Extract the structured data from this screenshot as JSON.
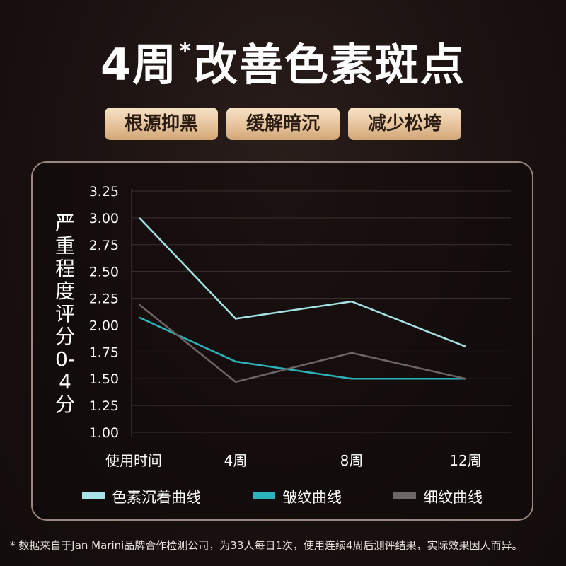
{
  "headline": {
    "prefix": "4周",
    "mark": "*",
    "suffix": "改善色素斑点"
  },
  "tags": [
    "根源抑黑",
    "缓解暗沉",
    "减少松垮"
  ],
  "colors": {
    "pigment": "#a6e3e6",
    "wrinkle": "#2ab3bb",
    "fine": "#6d6566",
    "tag": "#e6c39c"
  },
  "chart_data": {
    "type": "line",
    "categories": [
      "使用时间",
      "4周",
      "8周",
      "12周"
    ],
    "ylabel": "严重程度评分0-4分",
    "ylim": [
      1.0,
      3.25
    ],
    "yticks": [
      "1.00",
      "1.25",
      "1.50",
      "1.75",
      "2.00",
      "2.25",
      "2.50",
      "2.75",
      "3.00",
      "3.25"
    ],
    "grid": true,
    "legend_position": "bottom",
    "series": [
      {
        "name": "色素沉着曲线",
        "values": [
          3.0,
          2.06,
          2.22,
          1.8
        ]
      },
      {
        "name": "皱纹曲线",
        "values": [
          2.07,
          1.66,
          1.5,
          1.5
        ]
      },
      {
        "name": "细纹曲线",
        "values": [
          2.19,
          1.47,
          1.74,
          1.5
        ]
      }
    ]
  },
  "footnote": "* 数据来自于Jan Marini品牌合作检测公司，为33人每日1次，使用连续4周后测评结果，实际效果因人而异。"
}
